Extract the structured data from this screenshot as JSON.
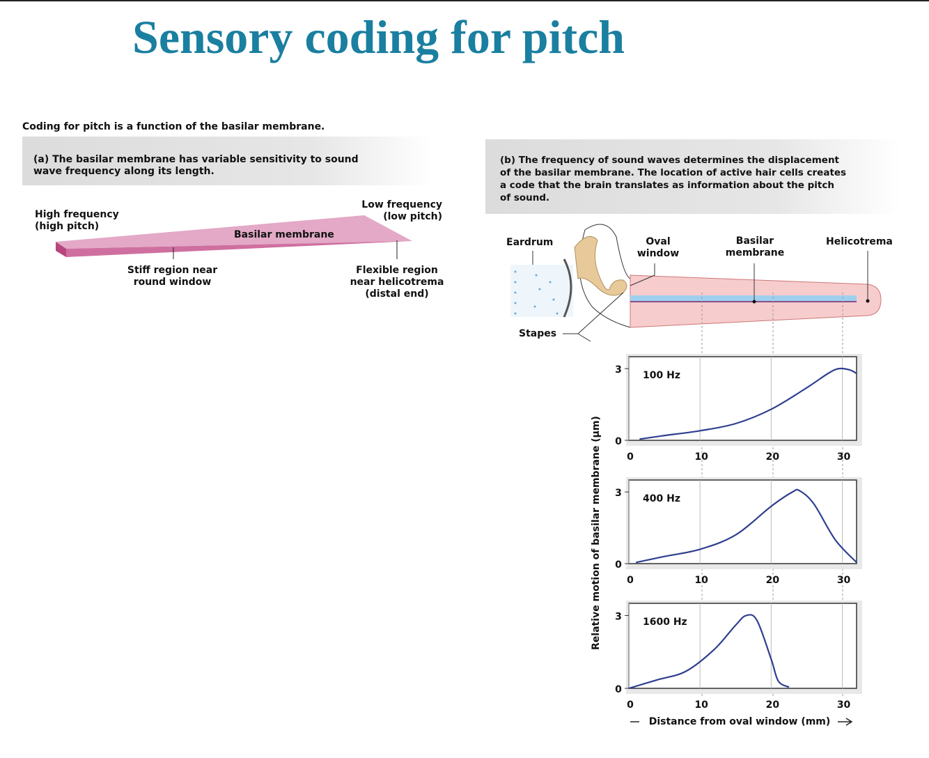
{
  "title": "Sensory coding for pitch",
  "intro": "Coding for pitch is a function of the basilar membrane.",
  "panel_a": {
    "caption": "(a) The basilar membrane has variable sensitivity to sound\nwave frequency along its length.",
    "labels": {
      "high": "High frequency\n(high pitch)",
      "low": "Low frequency\n(low pitch)",
      "membrane": "Basilar membrane",
      "stiff": "Stiff region near\nround window",
      "flexible": "Flexible region\nnear helicotrema\n(distal end)"
    }
  },
  "panel_b": {
    "caption": "(b) The frequency of sound waves determines the displacement\nof the basilar membrane. The location of active hair cells creates\na code that the brain translates as information about the pitch\nof sound.",
    "labels": {
      "eardrum": "Eardrum",
      "oval": "Oval\nwindow",
      "basilar": "Basilar\nmembrane",
      "helicotrema": "Helicotrema",
      "stapes": "Stapes"
    },
    "ylabel": "Relative motion of basilar membrane (µm)",
    "xlabel": "Distance from oval window (mm)"
  },
  "chart_data": [
    {
      "type": "line",
      "title": "100 Hz",
      "xlim": [
        0,
        32
      ],
      "ylim": [
        0,
        3.5
      ],
      "xticks": [
        0,
        10,
        20,
        30
      ],
      "yticks": [
        0,
        3
      ],
      "series": [
        {
          "name": "100 Hz",
          "color": "#2e3f8f",
          "x": [
            1.5,
            5,
            10,
            15,
            20,
            25,
            28,
            29.5,
            31,
            32
          ],
          "values": [
            0.05,
            0.2,
            0.4,
            0.7,
            1.3,
            2.2,
            2.8,
            3.0,
            2.95,
            2.8
          ]
        }
      ]
    },
    {
      "type": "line",
      "title": "400 Hz",
      "xlim": [
        0,
        32
      ],
      "ylim": [
        0,
        3.5
      ],
      "xticks": [
        0,
        10,
        20,
        30
      ],
      "yticks": [
        0,
        3
      ],
      "series": [
        {
          "name": "400 Hz",
          "color": "#2e3f8f",
          "x": [
            1,
            5,
            10,
            15,
            20,
            23,
            24,
            26,
            29,
            32
          ],
          "values": [
            0.05,
            0.3,
            0.6,
            1.2,
            2.4,
            3.0,
            3.05,
            2.5,
            1.0,
            0.05
          ]
        }
      ]
    },
    {
      "type": "line",
      "title": "1600 Hz",
      "xlim": [
        0,
        32
      ],
      "ylim": [
        0,
        3.5
      ],
      "xticks": [
        0,
        10,
        20,
        30
      ],
      "yticks": [
        0,
        3
      ],
      "series": [
        {
          "name": "1600 Hz",
          "color": "#2e3f8f",
          "x": [
            0,
            4,
            8,
            12,
            15,
            16.5,
            18,
            20,
            21,
            22.5
          ],
          "values": [
            0,
            0.35,
            0.7,
            1.6,
            2.6,
            3.0,
            2.8,
            1.2,
            0.3,
            0.05
          ]
        }
      ]
    }
  ]
}
